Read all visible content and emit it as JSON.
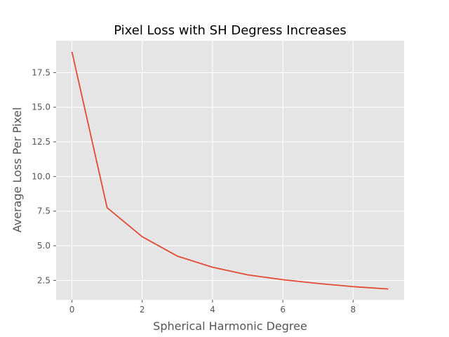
{
  "chart_data": {
    "type": "line",
    "title": "Pixel Loss with SH Degress Increases",
    "xlabel": "Spherical Harmonic Degree",
    "ylabel": "Average Loss Per Pixel",
    "xlim": [
      -0.45,
      9.45
    ],
    "ylim": [
      1.1,
      19.8
    ],
    "x_ticks": [
      0,
      2,
      4,
      6,
      8
    ],
    "y_ticks": [
      2.5,
      5.0,
      7.5,
      10.0,
      12.5,
      15.0,
      17.5
    ],
    "x_tick_labels": [
      "0",
      "2",
      "4",
      "6",
      "8"
    ],
    "y_tick_labels": [
      "2.5",
      "5.0",
      "7.5",
      "10.0",
      "12.5",
      "15.0",
      "17.5"
    ],
    "grid": true,
    "series": [
      {
        "x": [
          0,
          1,
          2,
          3,
          4,
          5,
          6,
          7,
          8,
          9
        ],
        "values": [
          19.0,
          7.75,
          5.65,
          4.25,
          3.45,
          2.9,
          2.55,
          2.28,
          2.05,
          1.88
        ],
        "color": "#e24a33"
      }
    ]
  }
}
